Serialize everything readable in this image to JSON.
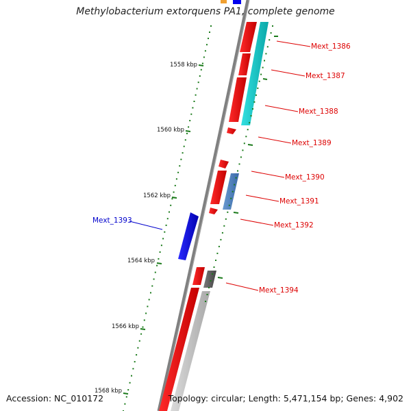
{
  "title": "Methylobacterium extorquens PA1, complete genome",
  "footer": {
    "accession": "Accession: NC_010172",
    "summary": "Topology: circular; Length: 5,471,154 bp; Genes: 4,902"
  },
  "colors": {
    "backbone": "#808080",
    "forward_gene": "#ee0000",
    "reverse_gene_cyan": "#11c9c9",
    "steelblue_gene": "#4a7fbf",
    "blue_gene": "#0000ee",
    "gray_gene": "#606060",
    "lightgray_gene": "#c0c0c0",
    "tick": "#1a7a1a",
    "label_red": "#dd0000",
    "label_blue": "#0000cc",
    "orange_gene": "#f0a030"
  },
  "scale": {
    "unit": "kbp",
    "ticks": [
      {
        "value": 1558,
        "label": "1558 kbp"
      },
      {
        "value": 1560,
        "label": "1560 kbp"
      },
      {
        "value": 1562,
        "label": "1562 kbp"
      },
      {
        "value": 1564,
        "label": "1564 kbp"
      },
      {
        "value": 1566,
        "label": "1566 kbp"
      },
      {
        "value": 1568,
        "label": "1568 kbp"
      }
    ]
  },
  "gene_labels": [
    {
      "id": "gene-label-mext-1386",
      "text": "Mext_1386",
      "color": "red"
    },
    {
      "id": "gene-label-mext-1387",
      "text": "Mext_1387",
      "color": "red"
    },
    {
      "id": "gene-label-mext-1388",
      "text": "Mext_1388",
      "color": "red"
    },
    {
      "id": "gene-label-mext-1389",
      "text": "Mext_1389",
      "color": "red"
    },
    {
      "id": "gene-label-mext-1390",
      "text": "Mext_1390",
      "color": "red"
    },
    {
      "id": "gene-label-mext-1391",
      "text": "Mext_1391",
      "color": "red"
    },
    {
      "id": "gene-label-mext-1392",
      "text": "Mext_1392",
      "color": "red"
    },
    {
      "id": "gene-label-mext-1393",
      "text": "Mext_1393",
      "color": "blue"
    },
    {
      "id": "gene-label-mext-1394",
      "text": "Mext_1394",
      "color": "red"
    }
  ]
}
